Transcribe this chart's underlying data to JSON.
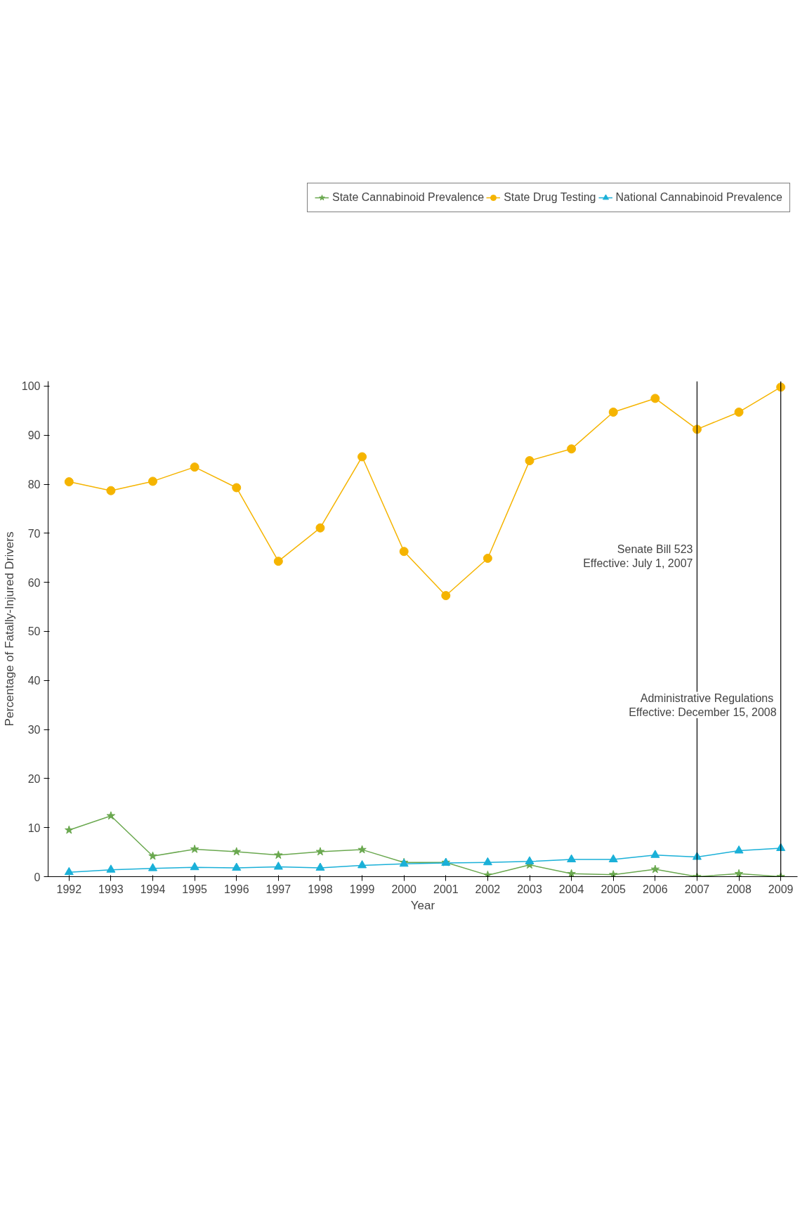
{
  "chart_data": {
    "type": "line",
    "xlabel": "Year",
    "ylabel": "Percentage of Fatally-Injured Drivers",
    "x": [
      1992,
      1993,
      1994,
      1995,
      1996,
      1997,
      1998,
      1999,
      2000,
      2001,
      2002,
      2003,
      2004,
      2005,
      2006,
      2007,
      2008,
      2009
    ],
    "xlim": [
      1991.5,
      2009.4
    ],
    "xticks": [
      1992,
      1993,
      1994,
      1995,
      1996,
      1997,
      1998,
      1999,
      2000,
      2001,
      2002,
      2003,
      2004,
      2005,
      2006,
      2007,
      2008,
      2009
    ],
    "ylim": [
      0,
      101
    ],
    "yticks": [
      0,
      10,
      20,
      30,
      40,
      50,
      60,
      70,
      80,
      90,
      100
    ],
    "series": [
      {
        "name": "State Cannabinoid Prevalence",
        "color": "#6aa84f",
        "marker": "star",
        "values": [
          9.5,
          12.4,
          4.2,
          5.6,
          5.1,
          4.4,
          5.1,
          5.5,
          2.9,
          2.9,
          0.3,
          2.4,
          0.6,
          0.4,
          1.5,
          0,
          0.6,
          0
        ]
      },
      {
        "name": "State Drug Testing",
        "color": "#f5b400",
        "marker": "circle",
        "values": [
          80.5,
          78.7,
          80.6,
          83.5,
          79.3,
          64.3,
          71.1,
          85.6,
          66.3,
          57.3,
          64.9,
          84.8,
          87.2,
          94.7,
          97.5,
          91.2,
          94.7,
          99.8
        ]
      },
      {
        "name": "National Cannabinoid Prevalence",
        "color": "#1ab0d8",
        "marker": "triangle",
        "values": [
          0.9,
          1.4,
          1.7,
          1.9,
          1.8,
          2.0,
          1.8,
          2.3,
          2.6,
          2.8,
          2.9,
          3.1,
          3.5,
          3.5,
          4.4,
          4.0,
          5.3,
          5.8
        ]
      }
    ],
    "ref_lines": [
      {
        "axis": "x",
        "value": 2007,
        "label": "Senate Bill 523\nEffective: July 1, 2007",
        "color": "#000000"
      },
      {
        "axis": "x",
        "value": 2009,
        "label": "Administrative  Regulations\nEffective: December 15, 2008",
        "color": "#000000"
      }
    ],
    "legend": "top",
    "grid": false
  }
}
